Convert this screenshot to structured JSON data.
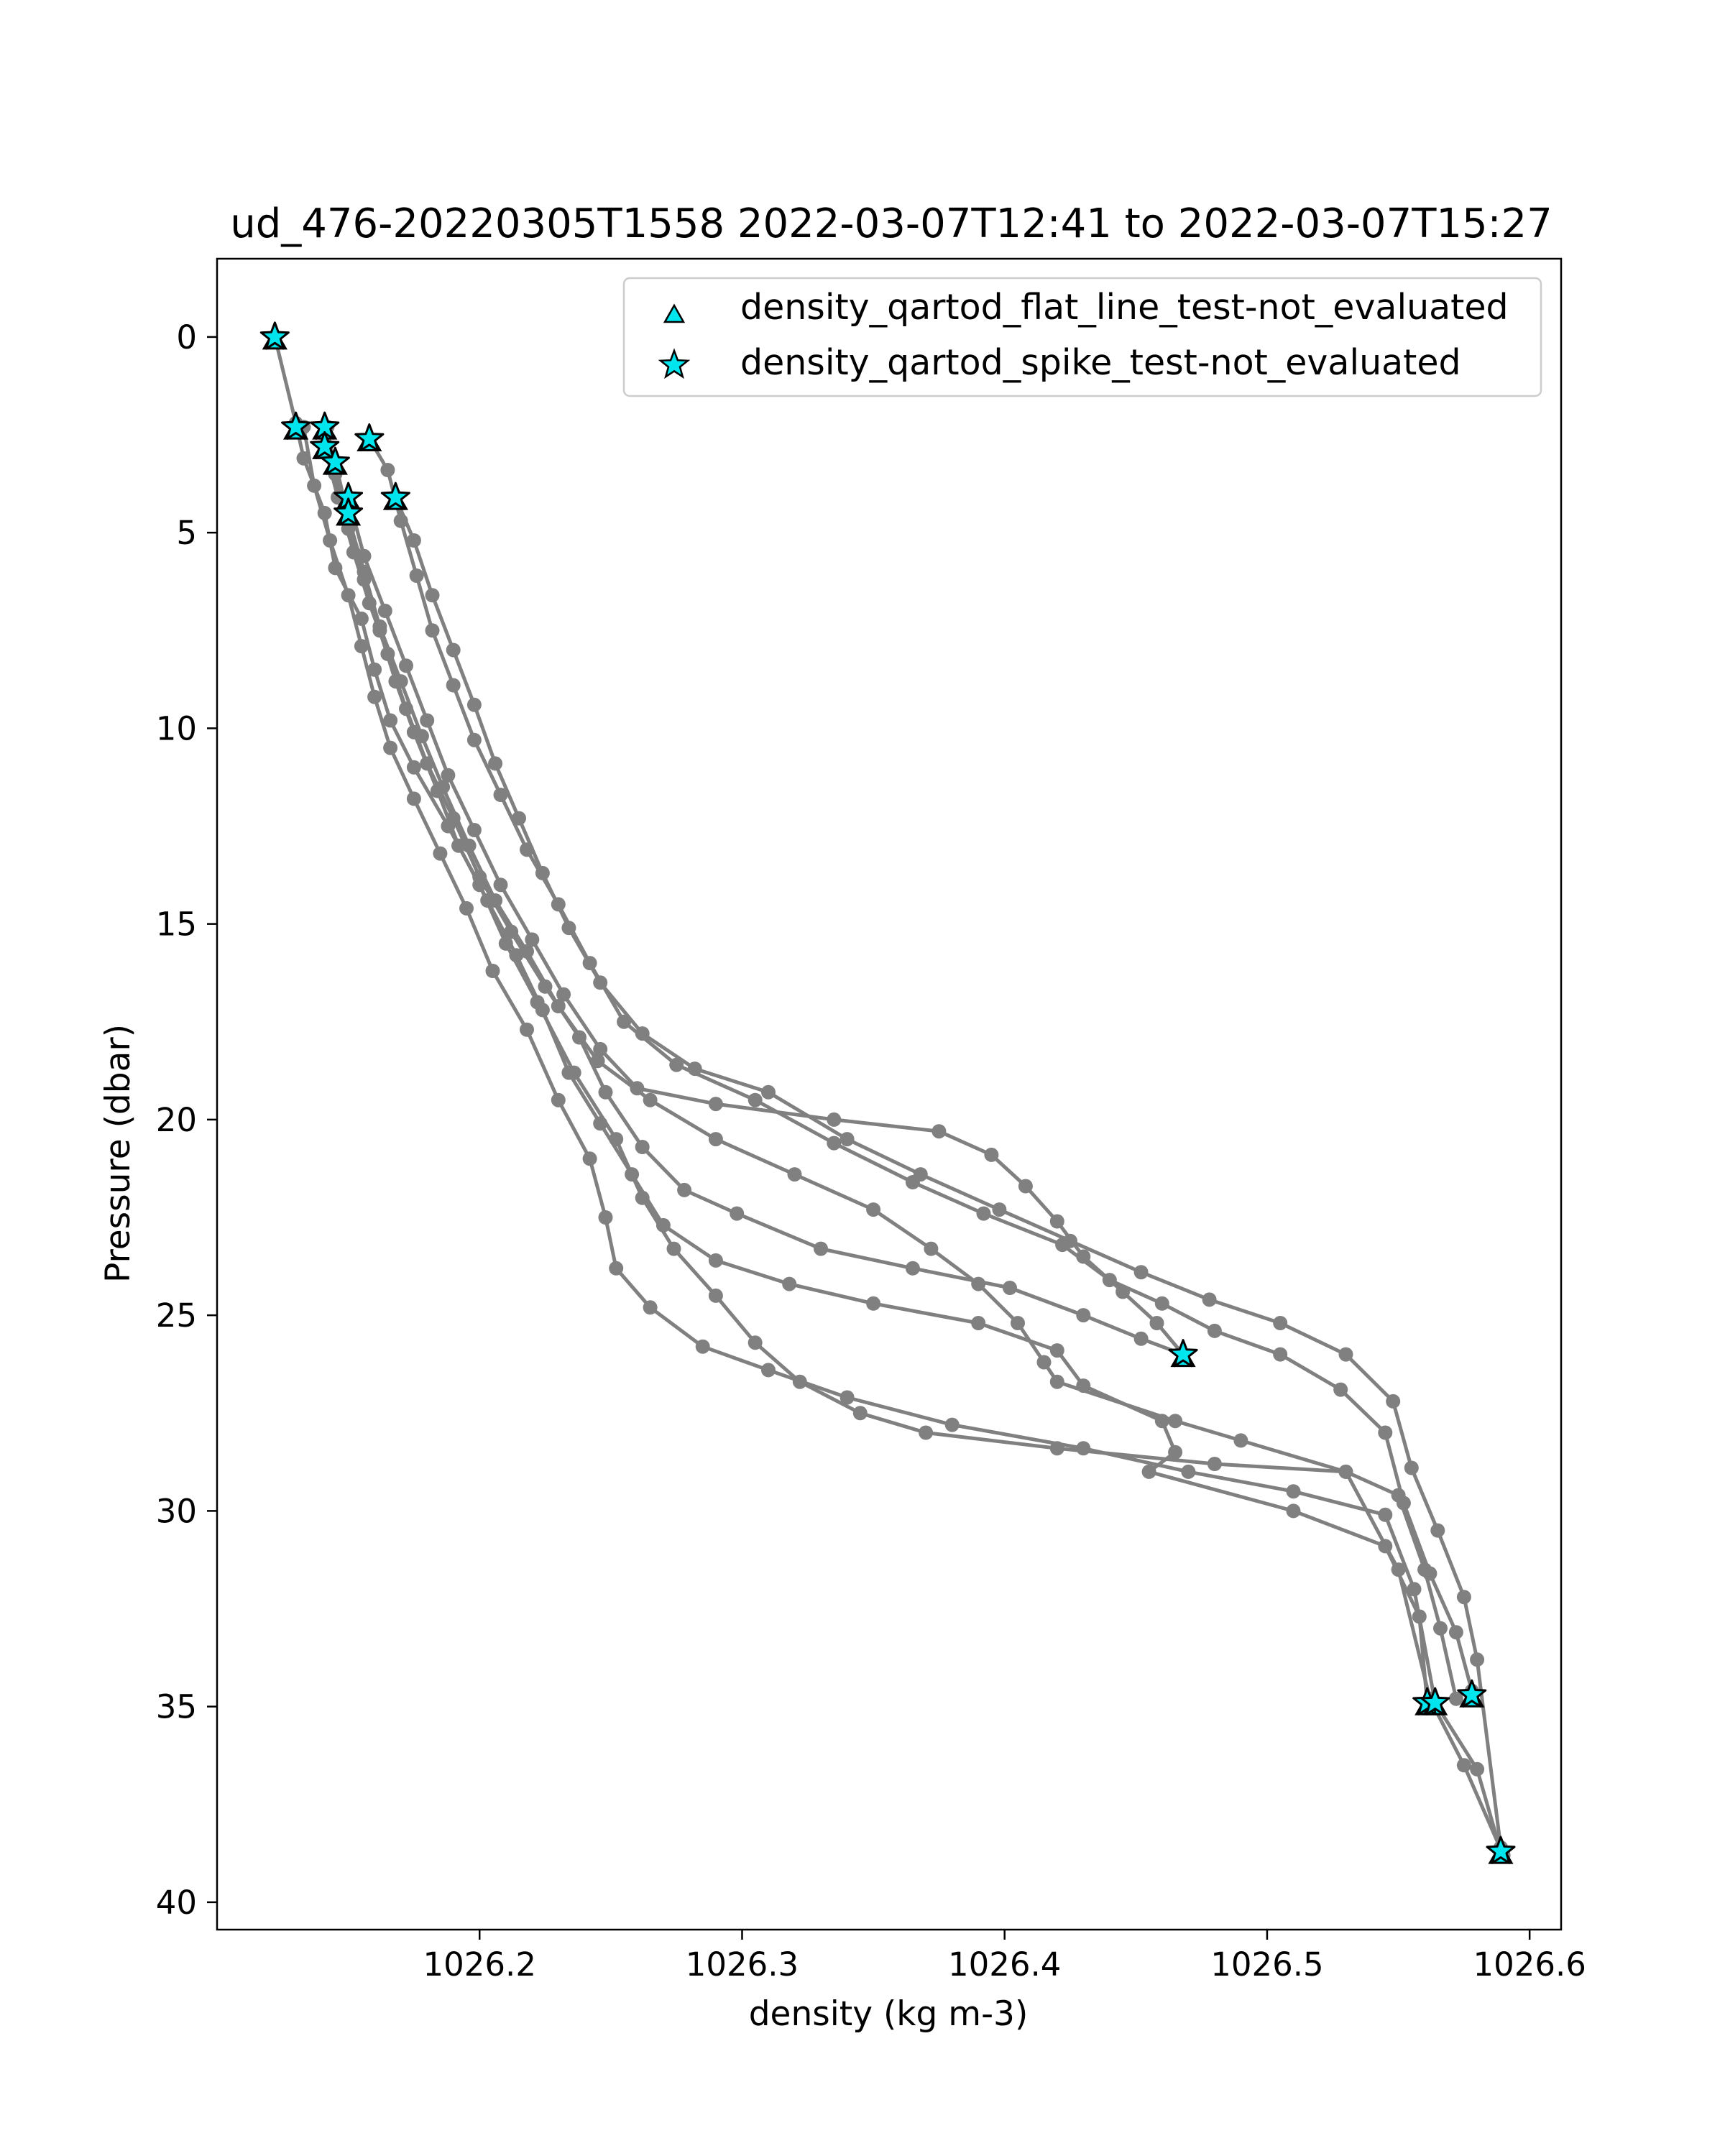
{
  "chart_data": {
    "type": "line",
    "title": "ud_476-20220305T1558 2022-03-07T12:41 to 2022-03-07T15:27",
    "xlabel": "density (kg m-3)",
    "ylabel": "Pressure (dbar)",
    "xlim": [
      1026.1,
      1026.612
    ],
    "ylim": [
      40.7,
      -2.0
    ],
    "y_inverted": true,
    "x_ticks": [
      {
        "value": 1026.2,
        "label": "1026.2"
      },
      {
        "value": 1026.3,
        "label": "1026.3"
      },
      {
        "value": 1026.4,
        "label": "1026.4"
      },
      {
        "value": 1026.5,
        "label": "1026.5"
      },
      {
        "value": 1026.6,
        "label": "1026.6"
      }
    ],
    "y_ticks": [
      {
        "value": 0,
        "label": "0"
      },
      {
        "value": 5,
        "label": "5"
      },
      {
        "value": 10,
        "label": "10"
      },
      {
        "value": 15,
        "label": "15"
      },
      {
        "value": 20,
        "label": "20"
      },
      {
        "value": 25,
        "label": "25"
      },
      {
        "value": 30,
        "label": "30"
      },
      {
        "value": 35,
        "label": "35"
      },
      {
        "value": 40,
        "label": "40"
      }
    ],
    "grid": false,
    "legend_position": "top-right",
    "line_color": "#808080",
    "marker_color": "#00e5ee",
    "legend": [
      {
        "label": "density_qartod_flat_line_test-not_evaluated",
        "marker": "triangle"
      },
      {
        "label": "density_qartod_spike_test-not_evaluated",
        "marker": "star"
      }
    ],
    "profiles": [
      [
        [
          1026.122,
          0.0
        ],
        [
          1026.13,
          2.2
        ],
        [
          1026.133,
          3.1
        ],
        [
          1026.141,
          4.5
        ],
        [
          1026.145,
          5.9
        ],
        [
          1026.155,
          7.2
        ],
        [
          1026.16,
          8.5
        ],
        [
          1026.166,
          9.8
        ],
        [
          1026.175,
          11.0
        ],
        [
          1026.188,
          12.5
        ],
        [
          1026.2,
          14.0
        ],
        [
          1026.21,
          15.5
        ],
        [
          1026.222,
          17.0
        ],
        [
          1026.236,
          18.8
        ],
        [
          1026.252,
          20.5
        ],
        [
          1026.262,
          22.0
        ],
        [
          1026.274,
          23.3
        ],
        [
          1026.29,
          24.5
        ],
        [
          1026.305,
          25.7
        ],
        [
          1026.322,
          26.7
        ],
        [
          1026.345,
          27.5
        ],
        [
          1026.37,
          28.0
        ],
        [
          1026.42,
          28.4
        ],
        [
          1026.48,
          28.8
        ],
        [
          1026.53,
          29.0
        ],
        [
          1026.55,
          31.5
        ],
        [
          1026.562,
          34.8
        ],
        [
          1026.575,
          36.5
        ],
        [
          1026.59,
          38.8
        ]
      ],
      [
        [
          1026.133,
          2.3
        ],
        [
          1026.137,
          3.8
        ],
        [
          1026.143,
          5.2
        ],
        [
          1026.15,
          6.6
        ],
        [
          1026.155,
          7.9
        ],
        [
          1026.16,
          9.2
        ],
        [
          1026.166,
          10.5
        ],
        [
          1026.175,
          11.8
        ],
        [
          1026.185,
          13.2
        ],
        [
          1026.195,
          14.6
        ],
        [
          1026.205,
          16.2
        ],
        [
          1026.218,
          17.7
        ],
        [
          1026.23,
          19.5
        ],
        [
          1026.242,
          21.0
        ],
        [
          1026.248,
          22.5
        ],
        [
          1026.252,
          23.8
        ],
        [
          1026.265,
          24.8
        ],
        [
          1026.285,
          25.8
        ],
        [
          1026.31,
          26.4
        ],
        [
          1026.34,
          27.1
        ],
        [
          1026.38,
          27.8
        ],
        [
          1026.43,
          28.4
        ],
        [
          1026.47,
          29.0
        ],
        [
          1026.51,
          29.5
        ],
        [
          1026.545,
          30.1
        ],
        [
          1026.556,
          32.0
        ],
        [
          1026.564,
          34.9
        ],
        [
          1026.58,
          36.6
        ],
        [
          1026.589,
          38.7
        ]
      ],
      [
        [
          1026.142,
          2.3
        ],
        [
          1026.145,
          3.5
        ],
        [
          1026.15,
          4.9
        ],
        [
          1026.156,
          6.2
        ],
        [
          1026.162,
          7.5
        ],
        [
          1026.168,
          8.8
        ],
        [
          1026.175,
          10.1
        ],
        [
          1026.184,
          11.6
        ],
        [
          1026.192,
          13.0
        ],
        [
          1026.203,
          14.4
        ],
        [
          1026.214,
          15.8
        ],
        [
          1026.224,
          17.2
        ],
        [
          1026.234,
          18.8
        ],
        [
          1026.246,
          20.1
        ],
        [
          1026.258,
          21.4
        ],
        [
          1026.27,
          22.7
        ],
        [
          1026.29,
          23.6
        ],
        [
          1026.318,
          24.2
        ],
        [
          1026.35,
          24.7
        ],
        [
          1026.39,
          25.2
        ],
        [
          1026.42,
          25.9
        ],
        [
          1026.43,
          26.8
        ],
        [
          1026.46,
          27.7
        ],
        [
          1026.465,
          28.5
        ],
        [
          1026.455,
          29.0
        ],
        [
          1026.51,
          30.0
        ],
        [
          1026.545,
          30.9
        ],
        [
          1026.558,
          32.7
        ],
        [
          1026.561,
          34.9
        ]
      ],
      [
        [
          1026.141,
          2.8
        ],
        [
          1026.146,
          4.1
        ],
        [
          1026.152,
          5.5
        ],
        [
          1026.158,
          6.8
        ],
        [
          1026.165,
          8.1
        ],
        [
          1026.172,
          9.5
        ],
        [
          1026.18,
          10.9
        ],
        [
          1026.19,
          12.3
        ],
        [
          1026.2,
          13.8
        ],
        [
          1026.212,
          15.2
        ],
        [
          1026.225,
          16.6
        ],
        [
          1026.238,
          17.9
        ],
        [
          1026.248,
          19.3
        ],
        [
          1026.262,
          20.7
        ],
        [
          1026.278,
          21.8
        ],
        [
          1026.298,
          22.4
        ],
        [
          1026.33,
          23.3
        ],
        [
          1026.365,
          23.8
        ],
        [
          1026.402,
          24.3
        ],
        [
          1026.43,
          25.0
        ],
        [
          1026.452,
          25.6
        ],
        [
          1026.468,
          26.0
        ]
      ],
      [
        [
          1026.145,
          3.2
        ],
        [
          1026.15,
          4.6
        ],
        [
          1026.156,
          6.0
        ],
        [
          1026.162,
          7.4
        ],
        [
          1026.17,
          8.8
        ],
        [
          1026.178,
          10.2
        ],
        [
          1026.186,
          11.5
        ],
        [
          1026.196,
          13.0
        ],
        [
          1026.206,
          14.4
        ],
        [
          1026.218,
          15.7
        ],
        [
          1026.23,
          17.1
        ],
        [
          1026.245,
          18.5
        ],
        [
          1026.265,
          19.5
        ],
        [
          1026.29,
          20.5
        ],
        [
          1026.32,
          21.4
        ],
        [
          1026.35,
          22.3
        ],
        [
          1026.372,
          23.3
        ],
        [
          1026.39,
          24.2
        ],
        [
          1026.405,
          25.2
        ],
        [
          1026.415,
          26.2
        ],
        [
          1026.42,
          26.7
        ],
        [
          1026.465,
          27.7
        ],
        [
          1026.49,
          28.2
        ],
        [
          1026.53,
          29.0
        ],
        [
          1026.55,
          29.6
        ],
        [
          1026.56,
          31.5
        ],
        [
          1026.566,
          33.0
        ],
        [
          1026.572,
          34.8
        ]
      ],
      [
        [
          1026.15,
          4.1
        ],
        [
          1026.156,
          5.6
        ],
        [
          1026.164,
          7.0
        ],
        [
          1026.172,
          8.4
        ],
        [
          1026.18,
          9.8
        ],
        [
          1026.188,
          11.2
        ],
        [
          1026.198,
          12.6
        ],
        [
          1026.208,
          14.0
        ],
        [
          1026.22,
          15.4
        ],
        [
          1026.232,
          16.8
        ],
        [
          1026.246,
          18.2
        ],
        [
          1026.26,
          19.2
        ],
        [
          1026.29,
          19.6
        ],
        [
          1026.335,
          20.0
        ],
        [
          1026.375,
          20.3
        ],
        [
          1026.395,
          20.9
        ],
        [
          1026.408,
          21.7
        ],
        [
          1026.42,
          22.6
        ],
        [
          1026.43,
          23.5
        ],
        [
          1026.445,
          24.4
        ],
        [
          1026.458,
          25.2
        ],
        [
          1026.468,
          26.0
        ]
      ],
      [
        [
          1026.158,
          2.6
        ],
        [
          1026.165,
          3.4
        ],
        [
          1026.17,
          4.7
        ],
        [
          1026.176,
          6.1
        ],
        [
          1026.182,
          7.5
        ],
        [
          1026.19,
          8.9
        ],
        [
          1026.198,
          10.3
        ],
        [
          1026.208,
          11.7
        ],
        [
          1026.218,
          13.1
        ],
        [
          1026.23,
          14.5
        ],
        [
          1026.242,
          16.0
        ],
        [
          1026.255,
          17.5
        ],
        [
          1026.275,
          18.6
        ],
        [
          1026.305,
          19.5
        ],
        [
          1026.335,
          20.6
        ],
        [
          1026.365,
          21.6
        ],
        [
          1026.392,
          22.4
        ],
        [
          1026.422,
          23.2
        ],
        [
          1026.44,
          24.1
        ],
        [
          1026.46,
          24.7
        ],
        [
          1026.48,
          25.4
        ],
        [
          1026.505,
          26.0
        ],
        [
          1026.528,
          26.9
        ],
        [
          1026.545,
          28.0
        ],
        [
          1026.552,
          29.8
        ],
        [
          1026.562,
          31.6
        ],
        [
          1026.572,
          33.1
        ],
        [
          1026.578,
          34.6
        ]
      ],
      [
        [
          1026.168,
          4.1
        ],
        [
          1026.175,
          5.2
        ],
        [
          1026.182,
          6.6
        ],
        [
          1026.19,
          8.0
        ],
        [
          1026.198,
          9.4
        ],
        [
          1026.206,
          10.9
        ],
        [
          1026.215,
          12.3
        ],
        [
          1026.224,
          13.7
        ],
        [
          1026.234,
          15.1
        ],
        [
          1026.246,
          16.5
        ],
        [
          1026.262,
          17.8
        ],
        [
          1026.282,
          18.7
        ],
        [
          1026.31,
          19.3
        ],
        [
          1026.34,
          20.5
        ],
        [
          1026.368,
          21.4
        ],
        [
          1026.398,
          22.3
        ],
        [
          1026.425,
          23.1
        ],
        [
          1026.452,
          23.9
        ],
        [
          1026.478,
          24.6
        ],
        [
          1026.505,
          25.2
        ],
        [
          1026.53,
          26.0
        ],
        [
          1026.548,
          27.2
        ],
        [
          1026.555,
          28.9
        ],
        [
          1026.565,
          30.5
        ],
        [
          1026.575,
          32.2
        ],
        [
          1026.58,
          33.8
        ],
        [
          1026.589,
          38.6
        ]
      ]
    ],
    "spike_flags": [
      [
        1026.122,
        0.0
      ],
      [
        1026.13,
        2.3
      ],
      [
        1026.141,
        2.3
      ],
      [
        1026.158,
        2.6
      ],
      [
        1026.141,
        2.8
      ],
      [
        1026.145,
        3.2
      ],
      [
        1026.15,
        4.1
      ],
      [
        1026.168,
        4.1
      ],
      [
        1026.15,
        4.5
      ],
      [
        1026.468,
        26.0
      ],
      [
        1026.561,
        34.9
      ],
      [
        1026.564,
        34.9
      ],
      [
        1026.578,
        34.7
      ],
      [
        1026.589,
        38.7
      ]
    ],
    "flat_line_flags": [
      [
        1026.122,
        0.0
      ],
      [
        1026.13,
        2.3
      ],
      [
        1026.141,
        2.3
      ],
      [
        1026.158,
        2.6
      ],
      [
        1026.141,
        2.8
      ],
      [
        1026.145,
        3.2
      ],
      [
        1026.15,
        4.1
      ],
      [
        1026.168,
        4.1
      ],
      [
        1026.15,
        4.5
      ],
      [
        1026.468,
        26.0
      ],
      [
        1026.561,
        34.9
      ],
      [
        1026.564,
        34.9
      ],
      [
        1026.578,
        34.7
      ],
      [
        1026.589,
        38.7
      ]
    ]
  }
}
